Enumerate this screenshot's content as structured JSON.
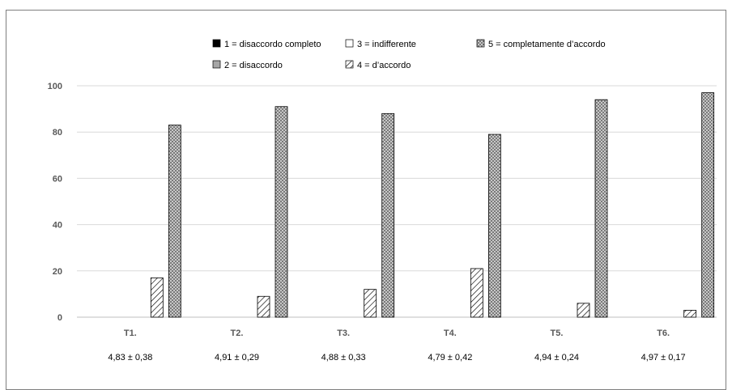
{
  "chart_data": {
    "type": "bar",
    "title": "",
    "xlabel": "",
    "ylabel": "",
    "ylim": [
      0,
      100
    ],
    "yticks": [
      0,
      20,
      40,
      60,
      80,
      100
    ],
    "grid": true,
    "legend_position": "top",
    "categories": [
      "T1.",
      "T2.",
      "T3.",
      "T4.",
      "T5.",
      "T6."
    ],
    "subcategory_labels": [
      "4,83 ± 0,38",
      "4,91 ± 0,29",
      "4,88 ± 0,33",
      "4,79 ± 0,42",
      "4,94 ± 0,24",
      "4,97 ± 0,17"
    ],
    "series": [
      {
        "name": "1 = disaccordo completo",
        "values": [
          0,
          0,
          0,
          0,
          0,
          0
        ],
        "fill": "solid-black"
      },
      {
        "name": "2 = disaccordo",
        "values": [
          0,
          0,
          0,
          0,
          0,
          0
        ],
        "fill": "solid-gray"
      },
      {
        "name": "3 = indifferente",
        "values": [
          0,
          0,
          0,
          0,
          0,
          0
        ],
        "fill": "white"
      },
      {
        "name": "4 = d’accordo",
        "values": [
          17,
          9,
          12,
          21,
          6,
          3
        ],
        "fill": "diagonal-hatch"
      },
      {
        "name": "5 = completamente d’accordo",
        "values": [
          83,
          91,
          88,
          79,
          94,
          97
        ],
        "fill": "dotted-gray"
      }
    ],
    "colors": {
      "axis": "#bfbfbf",
      "grid": "#d9d9d9",
      "text": "#595959",
      "dark_text": "#000000",
      "bar_outline": "#000000",
      "gray_fill": "#a6a6a6",
      "dot_bg": "#808080"
    }
  }
}
